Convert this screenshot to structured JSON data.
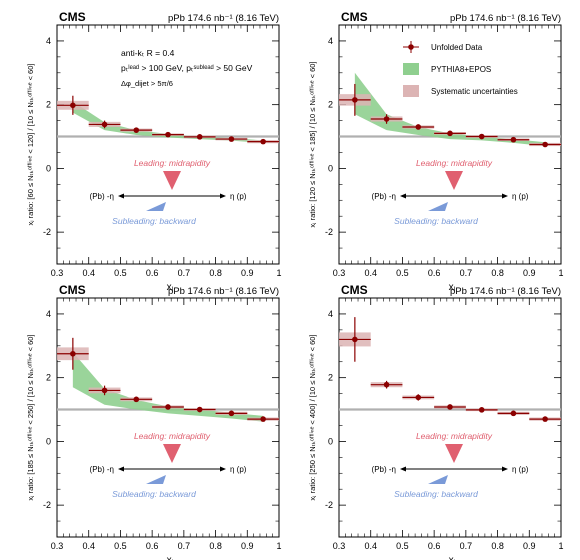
{
  "figure": {
    "cms_label": "CMS",
    "lumi_label": "pPb 174.6 nb⁻¹ (8.16 TeV)",
    "xlabel": "xⱼ",
    "leading_label": "Leading: midrapidity",
    "subleading_label": "Subleading: backward",
    "eta_left": "(Pb) -η",
    "eta_right": "η (p)",
    "colors": {
      "data": "#8b0000",
      "pythia_band": "#8fcf8f",
      "syst_box": "#dcb4b4",
      "leading_triangle": "#e06070",
      "subleading_triangle": "#7a9ad8",
      "unity_line": "#b0b0b0"
    }
  },
  "legend": {
    "data": "Unfolded Data",
    "pythia": "PYTHIA8+EPOS",
    "syst": "Systematic uncertainties"
  },
  "cuts": {
    "algo": "anti-kₜ R = 0.4",
    "pt": "pₜˡᵉᵃᵈ > 100 GeV, pₜˢᵘᵇˡᵉᵃᵈ > 50 GeV",
    "dphi": "Δφ_dijet > 5π/6"
  },
  "chart_data": [
    {
      "type": "scatter",
      "ylabel": "xⱼ ratio: [60 ≤ Nₜₖᵒᶠᶠˡⁱⁿᵉ < 120] / [10 ≤ Nₜₖᵒᶠᶠˡⁱⁿᵉ < 60]",
      "xlim": [
        0.3,
        1.0
      ],
      "ylim": [
        -3,
        4.5
      ],
      "x": [
        0.35,
        0.45,
        0.55,
        0.65,
        0.75,
        0.85,
        0.95
      ],
      "y": [
        1.98,
        1.38,
        1.2,
        1.06,
        0.99,
        0.92,
        0.84
      ],
      "stat_err": [
        0.3,
        0.12,
        0.07,
        0.06,
        0.05,
        0.05,
        0.06
      ],
      "syst_err": [
        0.14,
        0.08,
        0.05,
        0.04,
        0.04,
        0.04,
        0.05
      ],
      "pythia_lo": [
        1.75,
        1.2,
        1.05,
        0.97,
        0.92,
        0.87,
        0.8
      ],
      "pythia_hi": [
        2.1,
        1.45,
        1.2,
        1.08,
        1.0,
        0.95,
        0.88
      ]
    },
    {
      "type": "scatter",
      "ylabel": "xⱼ ratio: [120 ≤ Nₜₖᵒᶠᶠˡⁱⁿᵉ < 185] / [10 ≤ Nₜₖᵒᶠᶠˡⁱⁿᵉ < 60]",
      "xlim": [
        0.3,
        1.0
      ],
      "ylim": [
        -3,
        4.5
      ],
      "x": [
        0.35,
        0.45,
        0.55,
        0.65,
        0.75,
        0.85,
        0.95
      ],
      "y": [
        2.15,
        1.55,
        1.3,
        1.1,
        1.0,
        0.9,
        0.75
      ],
      "stat_err": [
        0.5,
        0.15,
        0.08,
        0.06,
        0.05,
        0.06,
        0.07
      ],
      "syst_err": [
        0.18,
        0.08,
        0.05,
        0.04,
        0.04,
        0.04,
        0.05
      ],
      "pythia_lo": [
        1.7,
        1.2,
        1.05,
        0.92,
        0.88,
        0.8,
        0.7
      ],
      "pythia_hi": [
        3.0,
        1.7,
        1.3,
        1.1,
        1.0,
        0.92,
        0.82
      ]
    },
    {
      "type": "scatter",
      "ylabel": "xⱼ ratio: [185 ≤ Nₜₖᵒᶠᶠˡⁱⁿᵉ < 250] / [10 ≤ Nₜₖᵒᶠᶠˡⁱⁿᵉ < 60]",
      "xlim": [
        0.3,
        1.0
      ],
      "ylim": [
        -3,
        4.5
      ],
      "x": [
        0.35,
        0.45,
        0.55,
        0.65,
        0.75,
        0.85,
        0.95
      ],
      "y": [
        2.75,
        1.6,
        1.32,
        1.08,
        1.0,
        0.88,
        0.7
      ],
      "stat_err": [
        0.5,
        0.15,
        0.08,
        0.06,
        0.06,
        0.06,
        0.07
      ],
      "syst_err": [
        0.2,
        0.09,
        0.06,
        0.05,
        0.04,
        0.05,
        0.05
      ],
      "pythia_lo": [
        1.7,
        1.15,
        1.0,
        0.88,
        0.8,
        0.72,
        0.62
      ],
      "pythia_hi": [
        2.8,
        1.65,
        1.3,
        1.1,
        1.0,
        0.9,
        0.8
      ]
    },
    {
      "type": "scatter",
      "ylabel": "xⱼ ratio: [250 ≤ Nₜₖᵒᶠᶠˡⁱⁿᵉ < 400] / [10 ≤ Nₜₖᵒᶠᶠˡⁱⁿᵉ < 60]",
      "xlim": [
        0.3,
        1.0
      ],
      "ylim": [
        -3,
        4.5
      ],
      "x": [
        0.35,
        0.45,
        0.55,
        0.65,
        0.75,
        0.85,
        0.95
      ],
      "y": [
        3.2,
        1.78,
        1.38,
        1.08,
        0.99,
        0.88,
        0.7
      ],
      "stat_err": [
        0.7,
        0.12,
        0.1,
        0.07,
        0.06,
        0.06,
        0.07
      ],
      "syst_err": [
        0.22,
        0.08,
        0.06,
        0.05,
        0.04,
        0.05,
        0.05
      ],
      "pythia_lo": null,
      "pythia_hi": null
    }
  ]
}
